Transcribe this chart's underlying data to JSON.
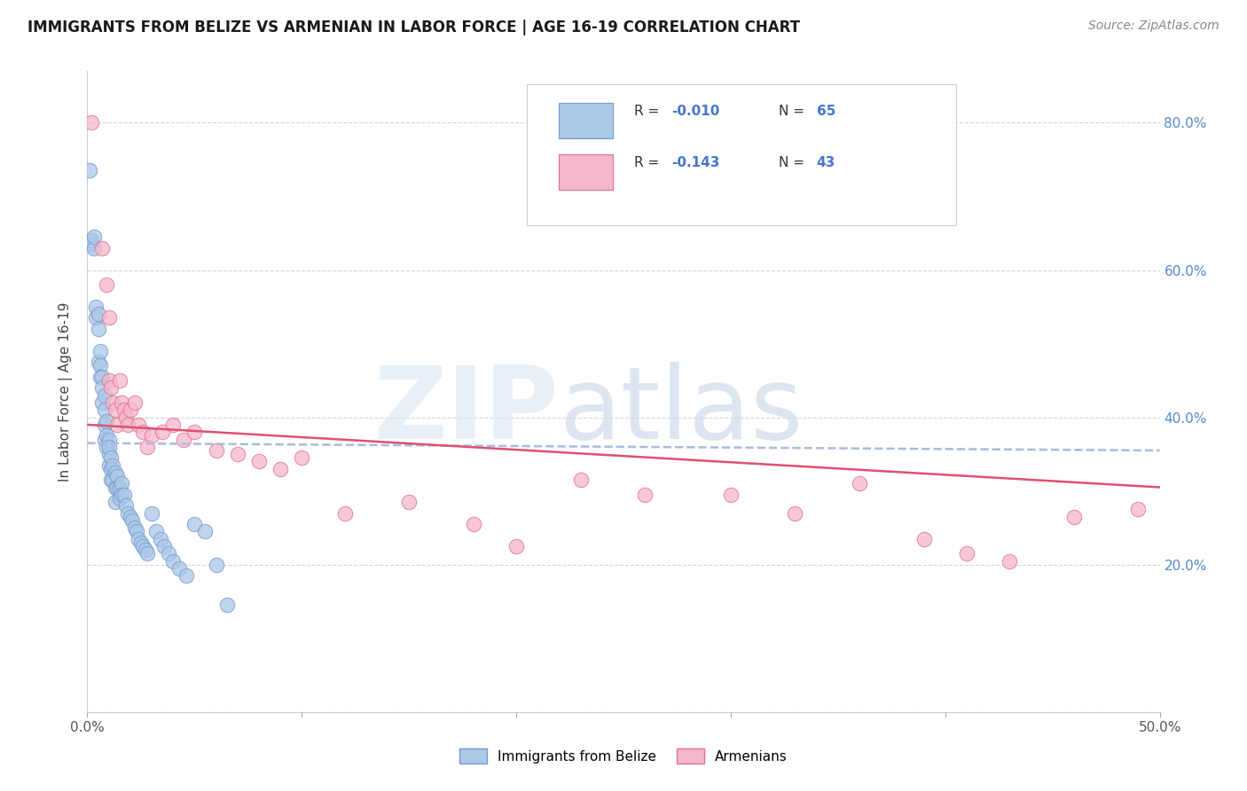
{
  "title": "IMMIGRANTS FROM BELIZE VS ARMENIAN IN LABOR FORCE | AGE 16-19 CORRELATION CHART",
  "source": "Source: ZipAtlas.com",
  "ylabel": "In Labor Force | Age 16-19",
  "xlim": [
    0.0,
    0.5
  ],
  "ylim": [
    0.0,
    0.87
  ],
  "xticks": [
    0.0,
    0.1,
    0.2,
    0.3,
    0.4,
    0.5
  ],
  "xtick_labels": [
    "0.0%",
    "",
    "",
    "",
    "",
    "50.0%"
  ],
  "yticks": [
    0.0,
    0.2,
    0.4,
    0.6,
    0.8
  ],
  "ytick_labels_right": [
    "",
    "20.0%",
    "40.0%",
    "60.0%",
    "80.0%"
  ],
  "belize_color": "#aac8e8",
  "armenian_color": "#f5b8cb",
  "belize_edge_color": "#7799cc",
  "armenian_edge_color": "#e07090",
  "R_belize": -0.01,
  "N_belize": 65,
  "R_armenian": -0.143,
  "N_armenian": 43,
  "legend_label_belize": "Immigrants from Belize",
  "legend_label_armenian": "Armenians",
  "belize_x": [
    0.001,
    0.002,
    0.002,
    0.003,
    0.003,
    0.004,
    0.004,
    0.005,
    0.005,
    0.005,
    0.006,
    0.006,
    0.006,
    0.007,
    0.007,
    0.007,
    0.008,
    0.008,
    0.008,
    0.008,
    0.009,
    0.009,
    0.009,
    0.01,
    0.01,
    0.01,
    0.01,
    0.011,
    0.011,
    0.011,
    0.012,
    0.012,
    0.013,
    0.013,
    0.013,
    0.014,
    0.014,
    0.015,
    0.015,
    0.016,
    0.016,
    0.017,
    0.018,
    0.019,
    0.02,
    0.021,
    0.022,
    0.023,
    0.024,
    0.025,
    0.026,
    0.027,
    0.028,
    0.03,
    0.032,
    0.034,
    0.036,
    0.038,
    0.04,
    0.043,
    0.046,
    0.05,
    0.055,
    0.06,
    0.065
  ],
  "belize_y": [
    0.735,
    0.635,
    0.64,
    0.63,
    0.645,
    0.55,
    0.535,
    0.54,
    0.52,
    0.475,
    0.49,
    0.47,
    0.455,
    0.455,
    0.44,
    0.42,
    0.43,
    0.41,
    0.39,
    0.37,
    0.395,
    0.375,
    0.36,
    0.37,
    0.35,
    0.335,
    0.36,
    0.345,
    0.33,
    0.315,
    0.335,
    0.315,
    0.325,
    0.305,
    0.285,
    0.32,
    0.305,
    0.305,
    0.29,
    0.31,
    0.295,
    0.295,
    0.28,
    0.27,
    0.265,
    0.26,
    0.25,
    0.245,
    0.235,
    0.23,
    0.225,
    0.22,
    0.215,
    0.27,
    0.245,
    0.235,
    0.225,
    0.215,
    0.205,
    0.195,
    0.185,
    0.255,
    0.245,
    0.2,
    0.145
  ],
  "armenian_x": [
    0.002,
    0.007,
    0.009,
    0.01,
    0.011,
    0.012,
    0.013,
    0.014,
    0.015,
    0.016,
    0.017,
    0.018,
    0.019,
    0.02,
    0.022,
    0.024,
    0.026,
    0.028,
    0.03,
    0.035,
    0.04,
    0.045,
    0.05,
    0.06,
    0.07,
    0.08,
    0.09,
    0.1,
    0.12,
    0.15,
    0.18,
    0.2,
    0.23,
    0.26,
    0.3,
    0.33,
    0.36,
    0.39,
    0.41,
    0.43,
    0.46,
    0.49,
    0.01
  ],
  "armenian_y": [
    0.8,
    0.63,
    0.58,
    0.45,
    0.44,
    0.42,
    0.41,
    0.39,
    0.45,
    0.42,
    0.41,
    0.4,
    0.39,
    0.41,
    0.42,
    0.39,
    0.38,
    0.36,
    0.375,
    0.38,
    0.39,
    0.37,
    0.38,
    0.355,
    0.35,
    0.34,
    0.33,
    0.345,
    0.27,
    0.285,
    0.255,
    0.225,
    0.315,
    0.295,
    0.295,
    0.27,
    0.31,
    0.235,
    0.215,
    0.205,
    0.265,
    0.275,
    0.535
  ]
}
